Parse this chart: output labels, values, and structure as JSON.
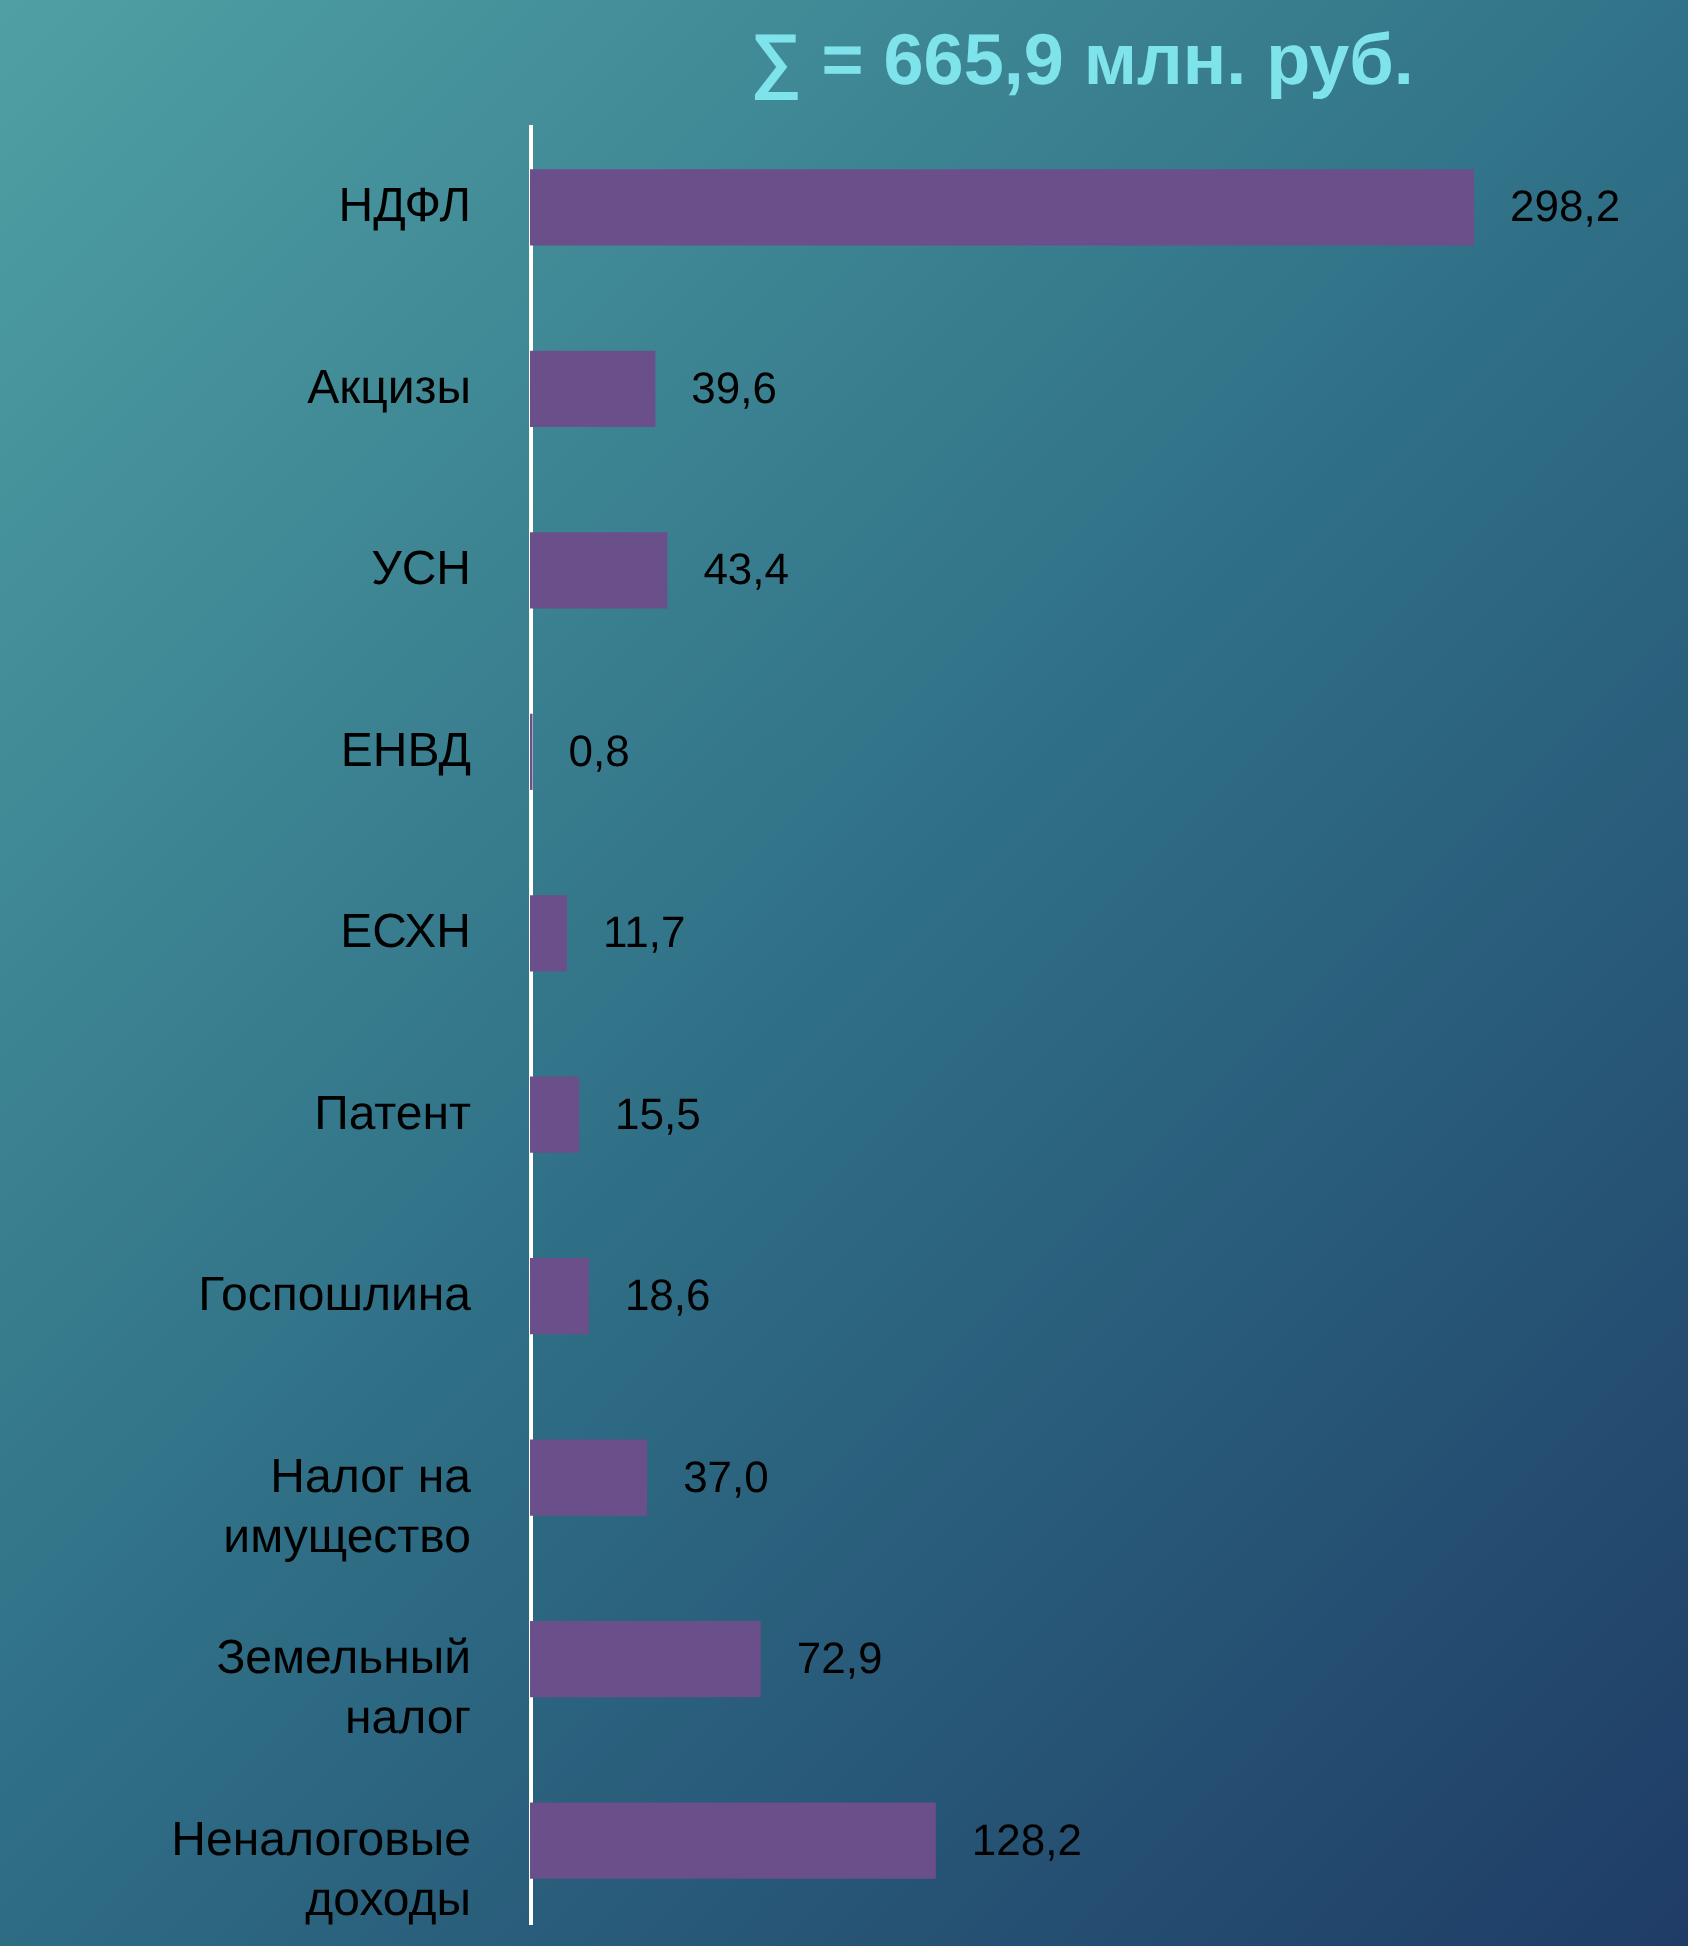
{
  "chart_data": {
    "type": "bar",
    "orientation": "horizontal",
    "title": "∑ = 665,9 млн. руб.",
    "categories": [
      "НДФЛ",
      "Акцизы",
      "УСН",
      "ЕНВД",
      "ЕСХН",
      "Патент",
      "Госпошлина",
      "Налог на имущество",
      "Земельный налог",
      "Неналоговые доходы"
    ],
    "values": [
      298.2,
      39.6,
      43.4,
      0.8,
      11.7,
      15.5,
      18.6,
      37.0,
      72.9,
      128.2
    ],
    "value_labels": [
      "298,2",
      "39,6",
      "43,4",
      "0,8",
      "11,7",
      "15,5",
      "18,6",
      "37,0",
      "72,9",
      "128,2"
    ],
    "color": "#6a4f8a"
  }
}
